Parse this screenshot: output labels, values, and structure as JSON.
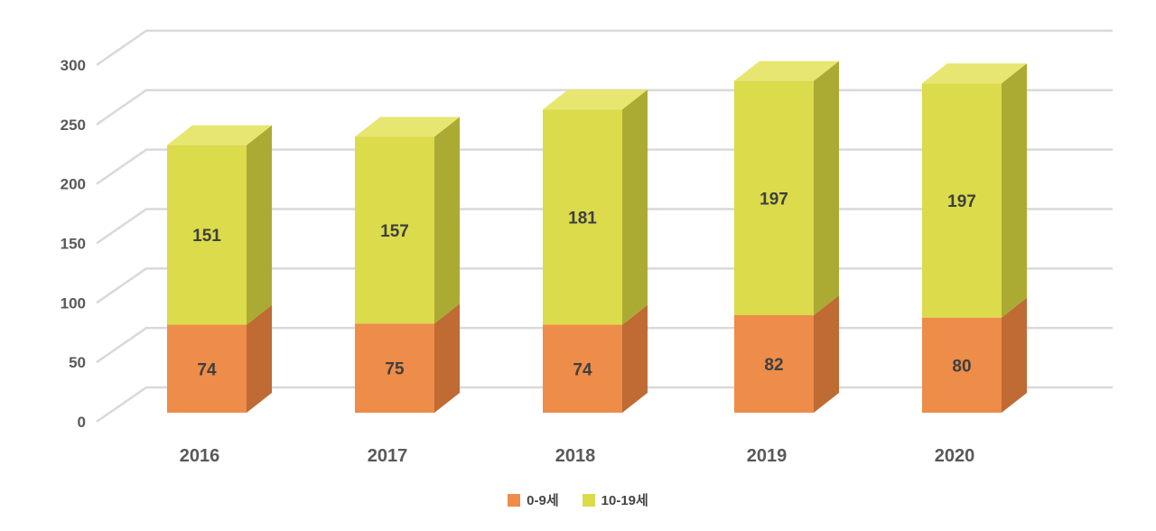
{
  "chart_data": {
    "type": "bar",
    "stacked": true,
    "three_d": true,
    "title": "",
    "xlabel": "",
    "ylabel": "",
    "categories": [
      "2016",
      "2017",
      "2018",
      "2019",
      "2020"
    ],
    "series": [
      {
        "name": "0-9세",
        "values": [
          74,
          75,
          74,
          82,
          80
        ],
        "color_front": "#EE8C4A",
        "color_side": "#BF6B33",
        "color_top": "#F4A878"
      },
      {
        "name": "10-19세",
        "values": [
          151,
          157,
          181,
          197,
          197
        ],
        "color_front": "#DBDB4B",
        "color_side": "#ABAB33",
        "color_top": "#E6E671"
      }
    ],
    "totals": [
      225,
      232,
      255,
      279,
      277
    ],
    "y_ticks": [
      0,
      50,
      100,
      150,
      200,
      250,
      300
    ],
    "ylim": [
      0,
      300
    ],
    "grid": true,
    "legend_position": "bottom"
  },
  "colors": {
    "background": "#ffffff",
    "grid_line": "#d9d9d9",
    "tick_label": "#595959",
    "category_label": "#595959",
    "value_label": "#3f3f3f",
    "legend_label": "#454545"
  }
}
